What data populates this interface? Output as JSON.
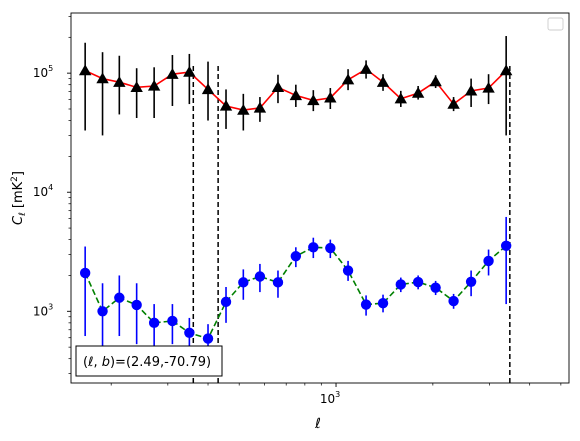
{
  "chart_data": {
    "type": "scatter",
    "xscale": "log",
    "yscale": "log",
    "xlim": [
      150,
      5300
    ],
    "ylim": [
      250,
      320000
    ],
    "xlabel": "ℓ",
    "ylabel": "C_ℓ  [mK²]",
    "ylabel_parts": {
      "base": "C",
      "sub": "ℓ",
      "unit_pre": " [mK",
      "unit_sup": "2",
      "unit_post": "]"
    },
    "x_ticks": [
      {
        "value": 1000,
        "base": "10",
        "exp": "3"
      }
    ],
    "y_ticks": [
      {
        "value": 1000,
        "base": "10",
        "exp": "3"
      },
      {
        "value": 10000,
        "base": "10",
        "exp": "4"
      },
      {
        "value": 100000,
        "base": "10",
        "exp": "5"
      }
    ],
    "vlines": [
      360,
      430,
      3470
    ],
    "annotation": "(ℓ, b)=(2.49,-70.79)",
    "annotation_parts": {
      "open": "(",
      "l": "ℓ",
      "comma": ", ",
      "b": "b",
      "rest": ")=(2.49,-70.79)"
    },
    "legend_location": "upper right",
    "series": [
      {
        "color": "#000000",
        "line_color": "#ff0000",
        "line_style": "solid",
        "marker": "triangle",
        "errorbar_color": "#000000",
        "points": [
          {
            "x": 166,
            "y": 105000,
            "lo": 33000,
            "hi": 180000
          },
          {
            "x": 188,
            "y": 90000,
            "lo": 30000,
            "hi": 150000
          },
          {
            "x": 212,
            "y": 84000,
            "lo": 45000,
            "hi": 140000
          },
          {
            "x": 240,
            "y": 76000,
            "lo": 42000,
            "hi": 110000
          },
          {
            "x": 272,
            "y": 78000,
            "lo": 42000,
            "hi": 112000
          },
          {
            "x": 310,
            "y": 98000,
            "lo": 53000,
            "hi": 142000
          },
          {
            "x": 350,
            "y": 102000,
            "lo": 55000,
            "hi": 145000
          },
          {
            "x": 400,
            "y": 73000,
            "lo": 40000,
            "hi": 125000
          },
          {
            "x": 455,
            "y": 53000,
            "lo": 34000,
            "hi": 73000
          },
          {
            "x": 515,
            "y": 49000,
            "lo": 33000,
            "hi": 67000
          },
          {
            "x": 580,
            "y": 51000,
            "lo": 39000,
            "hi": 63000
          },
          {
            "x": 660,
            "y": 76000,
            "lo": 56000,
            "hi": 97000
          },
          {
            "x": 750,
            "y": 65000,
            "lo": 52000,
            "hi": 80000
          },
          {
            "x": 850,
            "y": 59000,
            "lo": 48000,
            "hi": 72000
          },
          {
            "x": 960,
            "y": 62000,
            "lo": 50000,
            "hi": 75000
          },
          {
            "x": 1090,
            "y": 88000,
            "lo": 72000,
            "hi": 108000
          },
          {
            "x": 1240,
            "y": 108000,
            "lo": 90000,
            "hi": 128000
          },
          {
            "x": 1400,
            "y": 84000,
            "lo": 71000,
            "hi": 98000
          },
          {
            "x": 1590,
            "y": 61000,
            "lo": 52000,
            "hi": 71000
          },
          {
            "x": 1800,
            "y": 68000,
            "lo": 60000,
            "hi": 78000
          },
          {
            "x": 2040,
            "y": 85000,
            "lo": 75000,
            "hi": 96000
          },
          {
            "x": 2320,
            "y": 55000,
            "lo": 48000,
            "hi": 63000
          },
          {
            "x": 2630,
            "y": 71000,
            "lo": 52000,
            "hi": 90000
          },
          {
            "x": 2980,
            "y": 75000,
            "lo": 55000,
            "hi": 98000
          },
          {
            "x": 3380,
            "y": 105000,
            "lo": 30000,
            "hi": 205000
          }
        ]
      },
      {
        "color": "#0000ff",
        "line_color": "#008000",
        "line_style": "dashed",
        "marker": "circle",
        "errorbar_color": "#0000ff",
        "points": [
          {
            "x": 166,
            "y": 2100,
            "lo": 620,
            "hi": 3500
          },
          {
            "x": 188,
            "y": 1000,
            "lo": 380,
            "hi": 1720
          },
          {
            "x": 212,
            "y": 1300,
            "lo": 620,
            "hi": 2000
          },
          {
            "x": 240,
            "y": 1130,
            "lo": 530,
            "hi": 1720
          },
          {
            "x": 272,
            "y": 800,
            "lo": 440,
            "hi": 1150
          },
          {
            "x": 310,
            "y": 830,
            "lo": 530,
            "hi": 1150
          },
          {
            "x": 350,
            "y": 660,
            "lo": 440,
            "hi": 880
          },
          {
            "x": 400,
            "y": 590,
            "lo": 420,
            "hi": 780
          },
          {
            "x": 455,
            "y": 1200,
            "lo": 800,
            "hi": 1600
          },
          {
            "x": 515,
            "y": 1750,
            "lo": 1250,
            "hi": 2250
          },
          {
            "x": 580,
            "y": 1960,
            "lo": 1450,
            "hi": 2500
          },
          {
            "x": 660,
            "y": 1750,
            "lo": 1300,
            "hi": 2200
          },
          {
            "x": 750,
            "y": 2900,
            "lo": 2350,
            "hi": 3450
          },
          {
            "x": 850,
            "y": 3450,
            "lo": 2800,
            "hi": 4150
          },
          {
            "x": 960,
            "y": 3400,
            "lo": 2800,
            "hi": 4000
          },
          {
            "x": 1090,
            "y": 2200,
            "lo": 1800,
            "hi": 2650
          },
          {
            "x": 1240,
            "y": 1140,
            "lo": 920,
            "hi": 1360
          },
          {
            "x": 1400,
            "y": 1170,
            "lo": 980,
            "hi": 1380
          },
          {
            "x": 1590,
            "y": 1680,
            "lo": 1450,
            "hi": 1920
          },
          {
            "x": 1800,
            "y": 1760,
            "lo": 1530,
            "hi": 2000
          },
          {
            "x": 2040,
            "y": 1580,
            "lo": 1370,
            "hi": 1800
          },
          {
            "x": 2320,
            "y": 1220,
            "lo": 1050,
            "hi": 1400
          },
          {
            "x": 2630,
            "y": 1770,
            "lo": 1340,
            "hi": 2200
          },
          {
            "x": 2980,
            "y": 2650,
            "lo": 2000,
            "hi": 3300
          },
          {
            "x": 3380,
            "y": 3550,
            "lo": 1150,
            "hi": 6200
          }
        ]
      }
    ]
  }
}
